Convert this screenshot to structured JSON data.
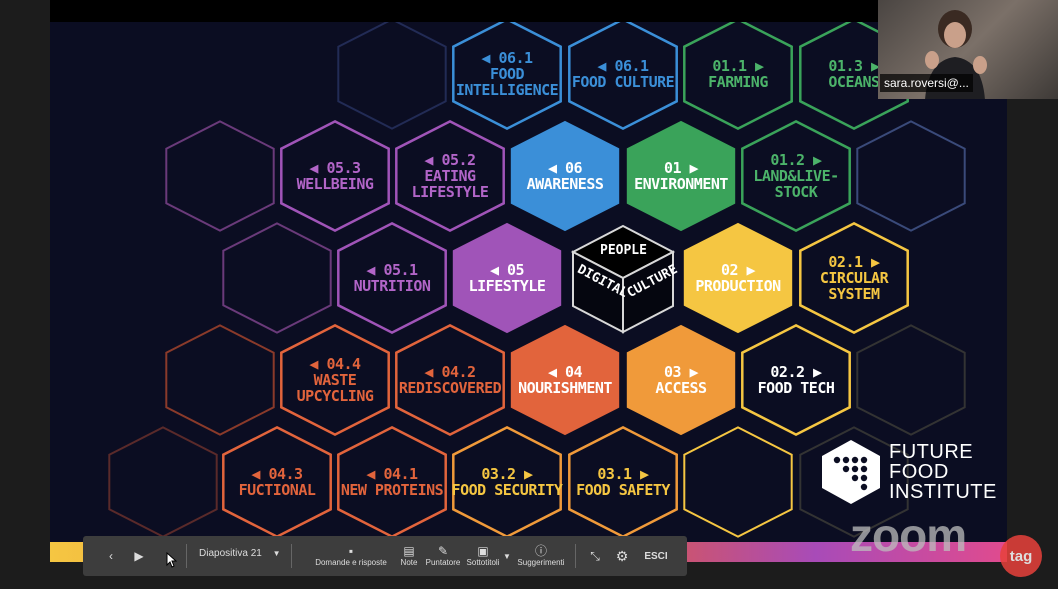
{
  "slide": {
    "hexes": [
      {
        "id": "06-1-food-intelligence",
        "num": "◀ 06.1",
        "label": "FOOD\nINTELLIGENCE",
        "color": "#3b8fd8",
        "filled": false,
        "textColor": "#3b8fd8"
      },
      {
        "id": "06-1-food-culture",
        "num": "◀ 06.1",
        "label": "FOOD CULTURE",
        "color": "#3b8fd8",
        "filled": false,
        "textColor": "#3b8fd8"
      },
      {
        "id": "01-1-farming",
        "num": "01.1 ▶",
        "label": "FARMING",
        "color": "#3aa35a",
        "filled": false,
        "textColor": "#4cb36a"
      },
      {
        "id": "01-3-oceans",
        "num": "01.3 ▶",
        "label": "OCEANS",
        "color": "#3aa35a",
        "filled": false,
        "textColor": "#4cb36a"
      },
      {
        "id": "05-3-wellbeing",
        "num": "◀ 05.3",
        "label": "WELLBEING",
        "color": "#a054b8",
        "filled": false,
        "textColor": "#b265c8"
      },
      {
        "id": "05-2-eating-lifestyle",
        "num": "◀ 05.2",
        "label": "EATING\nLIFESTYLE",
        "color": "#a054b8",
        "filled": false,
        "textColor": "#b265c8"
      },
      {
        "id": "06-awareness",
        "num": "◀ 06",
        "label": "AWARENESS",
        "color": "#3b8fd8",
        "filled": true,
        "textColor": "#ffffff"
      },
      {
        "id": "01-environment",
        "num": "01 ▶",
        "label": "ENVIRONMENT",
        "color": "#3aa35a",
        "filled": true,
        "textColor": "#ffffff"
      },
      {
        "id": "01-2-land-livestock",
        "num": "01.2 ▶",
        "label": "LAND&LIVE-\nSTOCK",
        "color": "#3aa35a",
        "filled": false,
        "textColor": "#4cb36a"
      },
      {
        "id": "05-1-nutrition",
        "num": "◀ 05.1",
        "label": "NUTRITION",
        "color": "#a054b8",
        "filled": false,
        "textColor": "#b265c8"
      },
      {
        "id": "05-lifestyle",
        "num": "◀ 05",
        "label": "LIFESTYLE",
        "color": "#a054b8",
        "filled": true,
        "textColor": "#ffffff"
      },
      {
        "id": "02-production",
        "num": "02 ▶",
        "label": "PRODUCTION",
        "color": "#f5c642",
        "filled": true,
        "textColor": "#ffffff"
      },
      {
        "id": "02-1-circular-system",
        "num": "02.1 ▶",
        "label": "CIRCULAR\nSYSTEM",
        "color": "#f5c642",
        "filled": false,
        "textColor": "#f5c642"
      },
      {
        "id": "04-4-waste-upcycling",
        "num": "◀ 04.4",
        "label": "WASTE\nUPCYCLING",
        "color": "#e2643c",
        "filled": false,
        "textColor": "#e2643c"
      },
      {
        "id": "04-2-rediscovered",
        "num": "◀ 04.2",
        "label": "REDISCOVERED",
        "color": "#e2643c",
        "filled": false,
        "textColor": "#e2643c"
      },
      {
        "id": "04-nourishment",
        "num": "◀ 04",
        "label": "NOURISHMENT",
        "color": "#e2643c",
        "filled": true,
        "textColor": "#ffffff"
      },
      {
        "id": "03-access",
        "num": "03 ▶",
        "label": "ACCESS",
        "color": "#f09a3a",
        "filled": true,
        "textColor": "#ffffff"
      },
      {
        "id": "02-2-food-tech",
        "num": "02.2 ▶",
        "label": "FOOD TECH",
        "color": "#f5c642",
        "filled": false,
        "textColor": "#ffffff"
      },
      {
        "id": "04-3-fuctional",
        "num": "◀ 04.3",
        "label": "FUCTIONAL",
        "color": "#e2643c",
        "filled": false,
        "textColor": "#e2643c"
      },
      {
        "id": "04-1-new-proteins",
        "num": "◀ 04.1",
        "label": "NEW PROTEINS",
        "color": "#e2643c",
        "filled": false,
        "textColor": "#e2643c"
      },
      {
        "id": "03-2-food-security",
        "num": "03.2 ▶",
        "label": "FOOD SECURITY",
        "color": "#f09a3a",
        "filled": false,
        "textColor": "#f5c642"
      },
      {
        "id": "03-1-food-safety",
        "num": "03.1 ▶",
        "label": "FOOD SAFETY",
        "color": "#f09a3a",
        "filled": false,
        "textColor": "#f5c642"
      }
    ],
    "center_cube": {
      "top": "PEOPLE",
      "left": "DIGITAL",
      "right": "CULTURE"
    },
    "logo": {
      "line1": "FUTURE",
      "line2": "FOOD",
      "line3": "INSTITUTE"
    }
  },
  "video": {
    "name": "sara.roversi@..."
  },
  "zoom_watermark": "zoom",
  "tag_badge": "tag",
  "toolbar": {
    "slide_selector": "Diapositiva 21",
    "qa_label": "Domande e risposte",
    "notes_label": "Note",
    "pointer_label": "Puntatore",
    "subtitles_label": "Sottotitoli",
    "suggestions_label": "Suggerimenti",
    "exit_label": "ESCI"
  }
}
